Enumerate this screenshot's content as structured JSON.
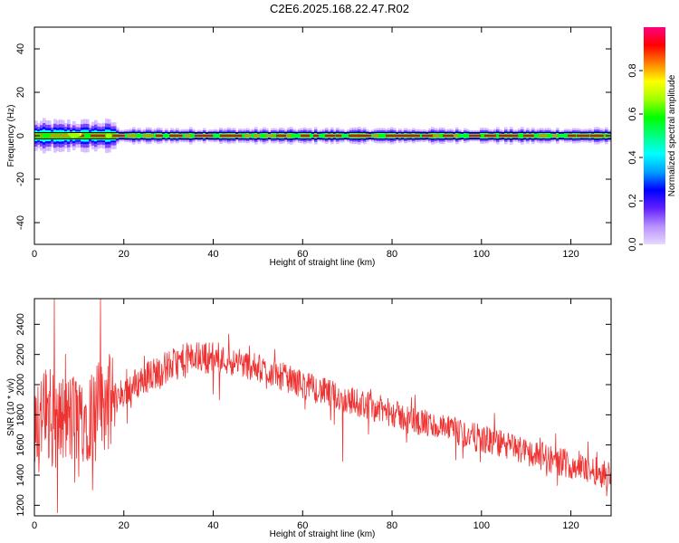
{
  "figure": {
    "title": "C2E6.2025.168.22.47.R02"
  },
  "chart_data": [
    {
      "type": "heatmap",
      "xlabel": "Height of straight line (km)",
      "ylabel": "Frequency (Hz)",
      "xlim": [
        0,
        129
      ],
      "ylim": [
        -50,
        50
      ],
      "xticks": [
        0,
        20,
        40,
        60,
        80,
        100,
        120
      ],
      "yticks": [
        -40,
        -20,
        0,
        20,
        40
      ],
      "colorbar": {
        "label": "Normalized spectral amplitude",
        "range": [
          0,
          1
        ],
        "ticks": [
          "0.0",
          "0.2",
          "0.4",
          "0.6",
          "0.8"
        ],
        "colors": [
          "#e8d8ff",
          "#b890ff",
          "#6020ff",
          "#0000ff",
          "#00a0ff",
          "#00ffff",
          "#00ff80",
          "#00ff00",
          "#a0ff00",
          "#ffff00",
          "#ff8000",
          "#ff0000",
          "#ff0080"
        ]
      },
      "band": {
        "center_hz": 0,
        "peak_amplitude": 0.85,
        "noise_zone_km": [
          0,
          18
        ],
        "line_color": "#000000"
      }
    },
    {
      "type": "line",
      "xlabel": "Height of straight line (km)",
      "ylabel": "SNR (10 * v/v)",
      "xlim": [
        0,
        129
      ],
      "ylim": [
        1130,
        2570
      ],
      "xticks": [
        0,
        20,
        40,
        60,
        80,
        100,
        120
      ],
      "yticks": [
        1200,
        1400,
        1600,
        1800,
        2000,
        2200,
        2400
      ],
      "color": "#ee3333",
      "trend": {
        "x": [
          0,
          5,
          10,
          15,
          20,
          25,
          30,
          35,
          40,
          45,
          50,
          55,
          60,
          65,
          70,
          75,
          80,
          85,
          90,
          95,
          100,
          105,
          110,
          115,
          120,
          125,
          129
        ],
        "y": [
          1800,
          1750,
          1780,
          1850,
          1950,
          2050,
          2120,
          2180,
          2180,
          2150,
          2110,
          2060,
          2000,
          1950,
          1900,
          1860,
          1810,
          1760,
          1720,
          1680,
          1640,
          1600,
          1560,
          1510,
          1470,
          1430,
          1400
        ]
      },
      "spikes": [
        {
          "x": 1,
          "y": 1420
        },
        {
          "x": 4.5,
          "y": 2570
        },
        {
          "x": 5.2,
          "y": 1150
        },
        {
          "x": 9,
          "y": 1350
        },
        {
          "x": 13,
          "y": 1300
        },
        {
          "x": 14.8,
          "y": 2570
        },
        {
          "x": 69,
          "y": 1490
        },
        {
          "x": 117,
          "y": 1330
        },
        {
          "x": 128,
          "y": 1260
        }
      ]
    }
  ]
}
